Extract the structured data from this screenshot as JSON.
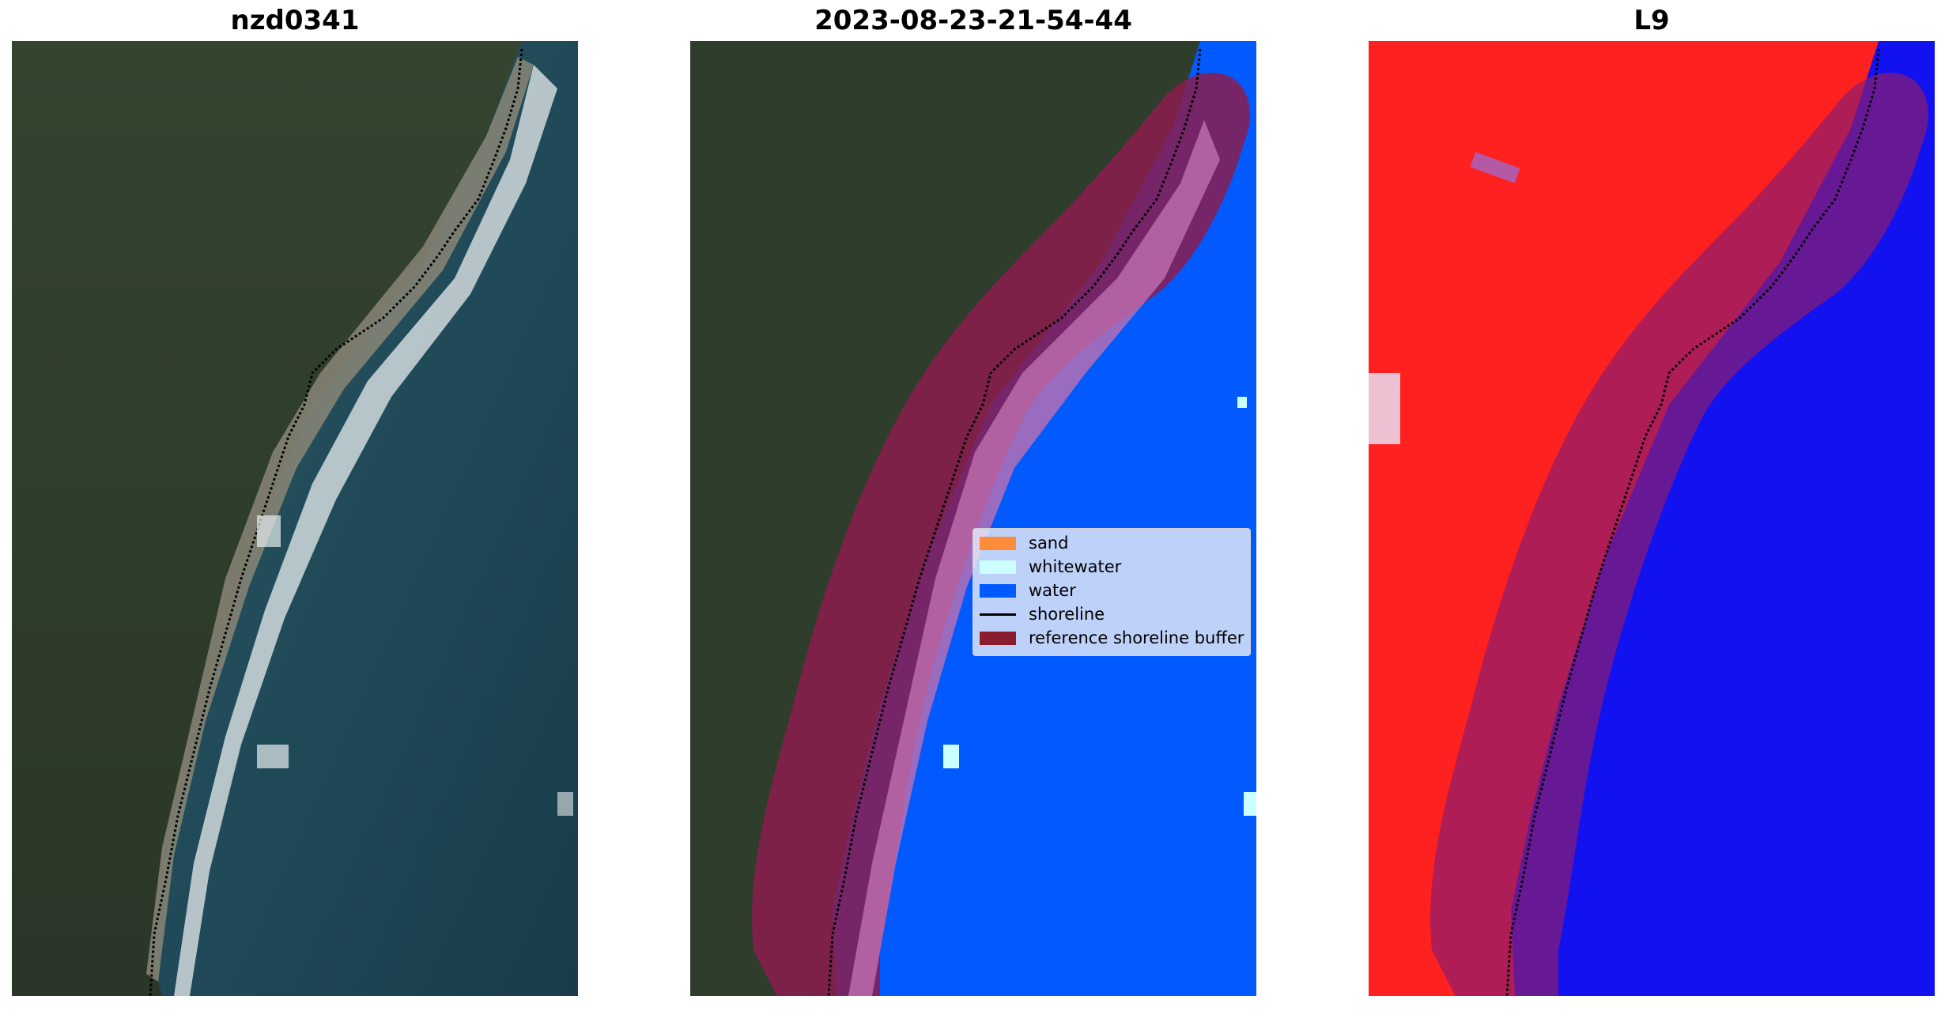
{
  "panels": [
    {
      "title": "nzd0341"
    },
    {
      "title": "2023-08-23-21-54-44"
    },
    {
      "title": "L9"
    }
  ],
  "legend": {
    "items": [
      {
        "label": "sand",
        "color": "#ff8c3a",
        "kind": "patch"
      },
      {
        "label": "whitewater",
        "color": "#ccffff",
        "kind": "patch"
      },
      {
        "label": "water",
        "color": "#005aff",
        "kind": "patch"
      },
      {
        "label": "shoreline",
        "color": "#000000",
        "kind": "line"
      },
      {
        "label": "reference shoreline buffer",
        "color": "#8b1c2e",
        "kind": "patch"
      }
    ]
  },
  "colors": {
    "land": "#2c3a2a",
    "ocean": "#1f4652",
    "class_water": "#005aff",
    "buffer": "#8b1c2e",
    "index_land": "#ff2020",
    "index_water": "#1010ff"
  }
}
